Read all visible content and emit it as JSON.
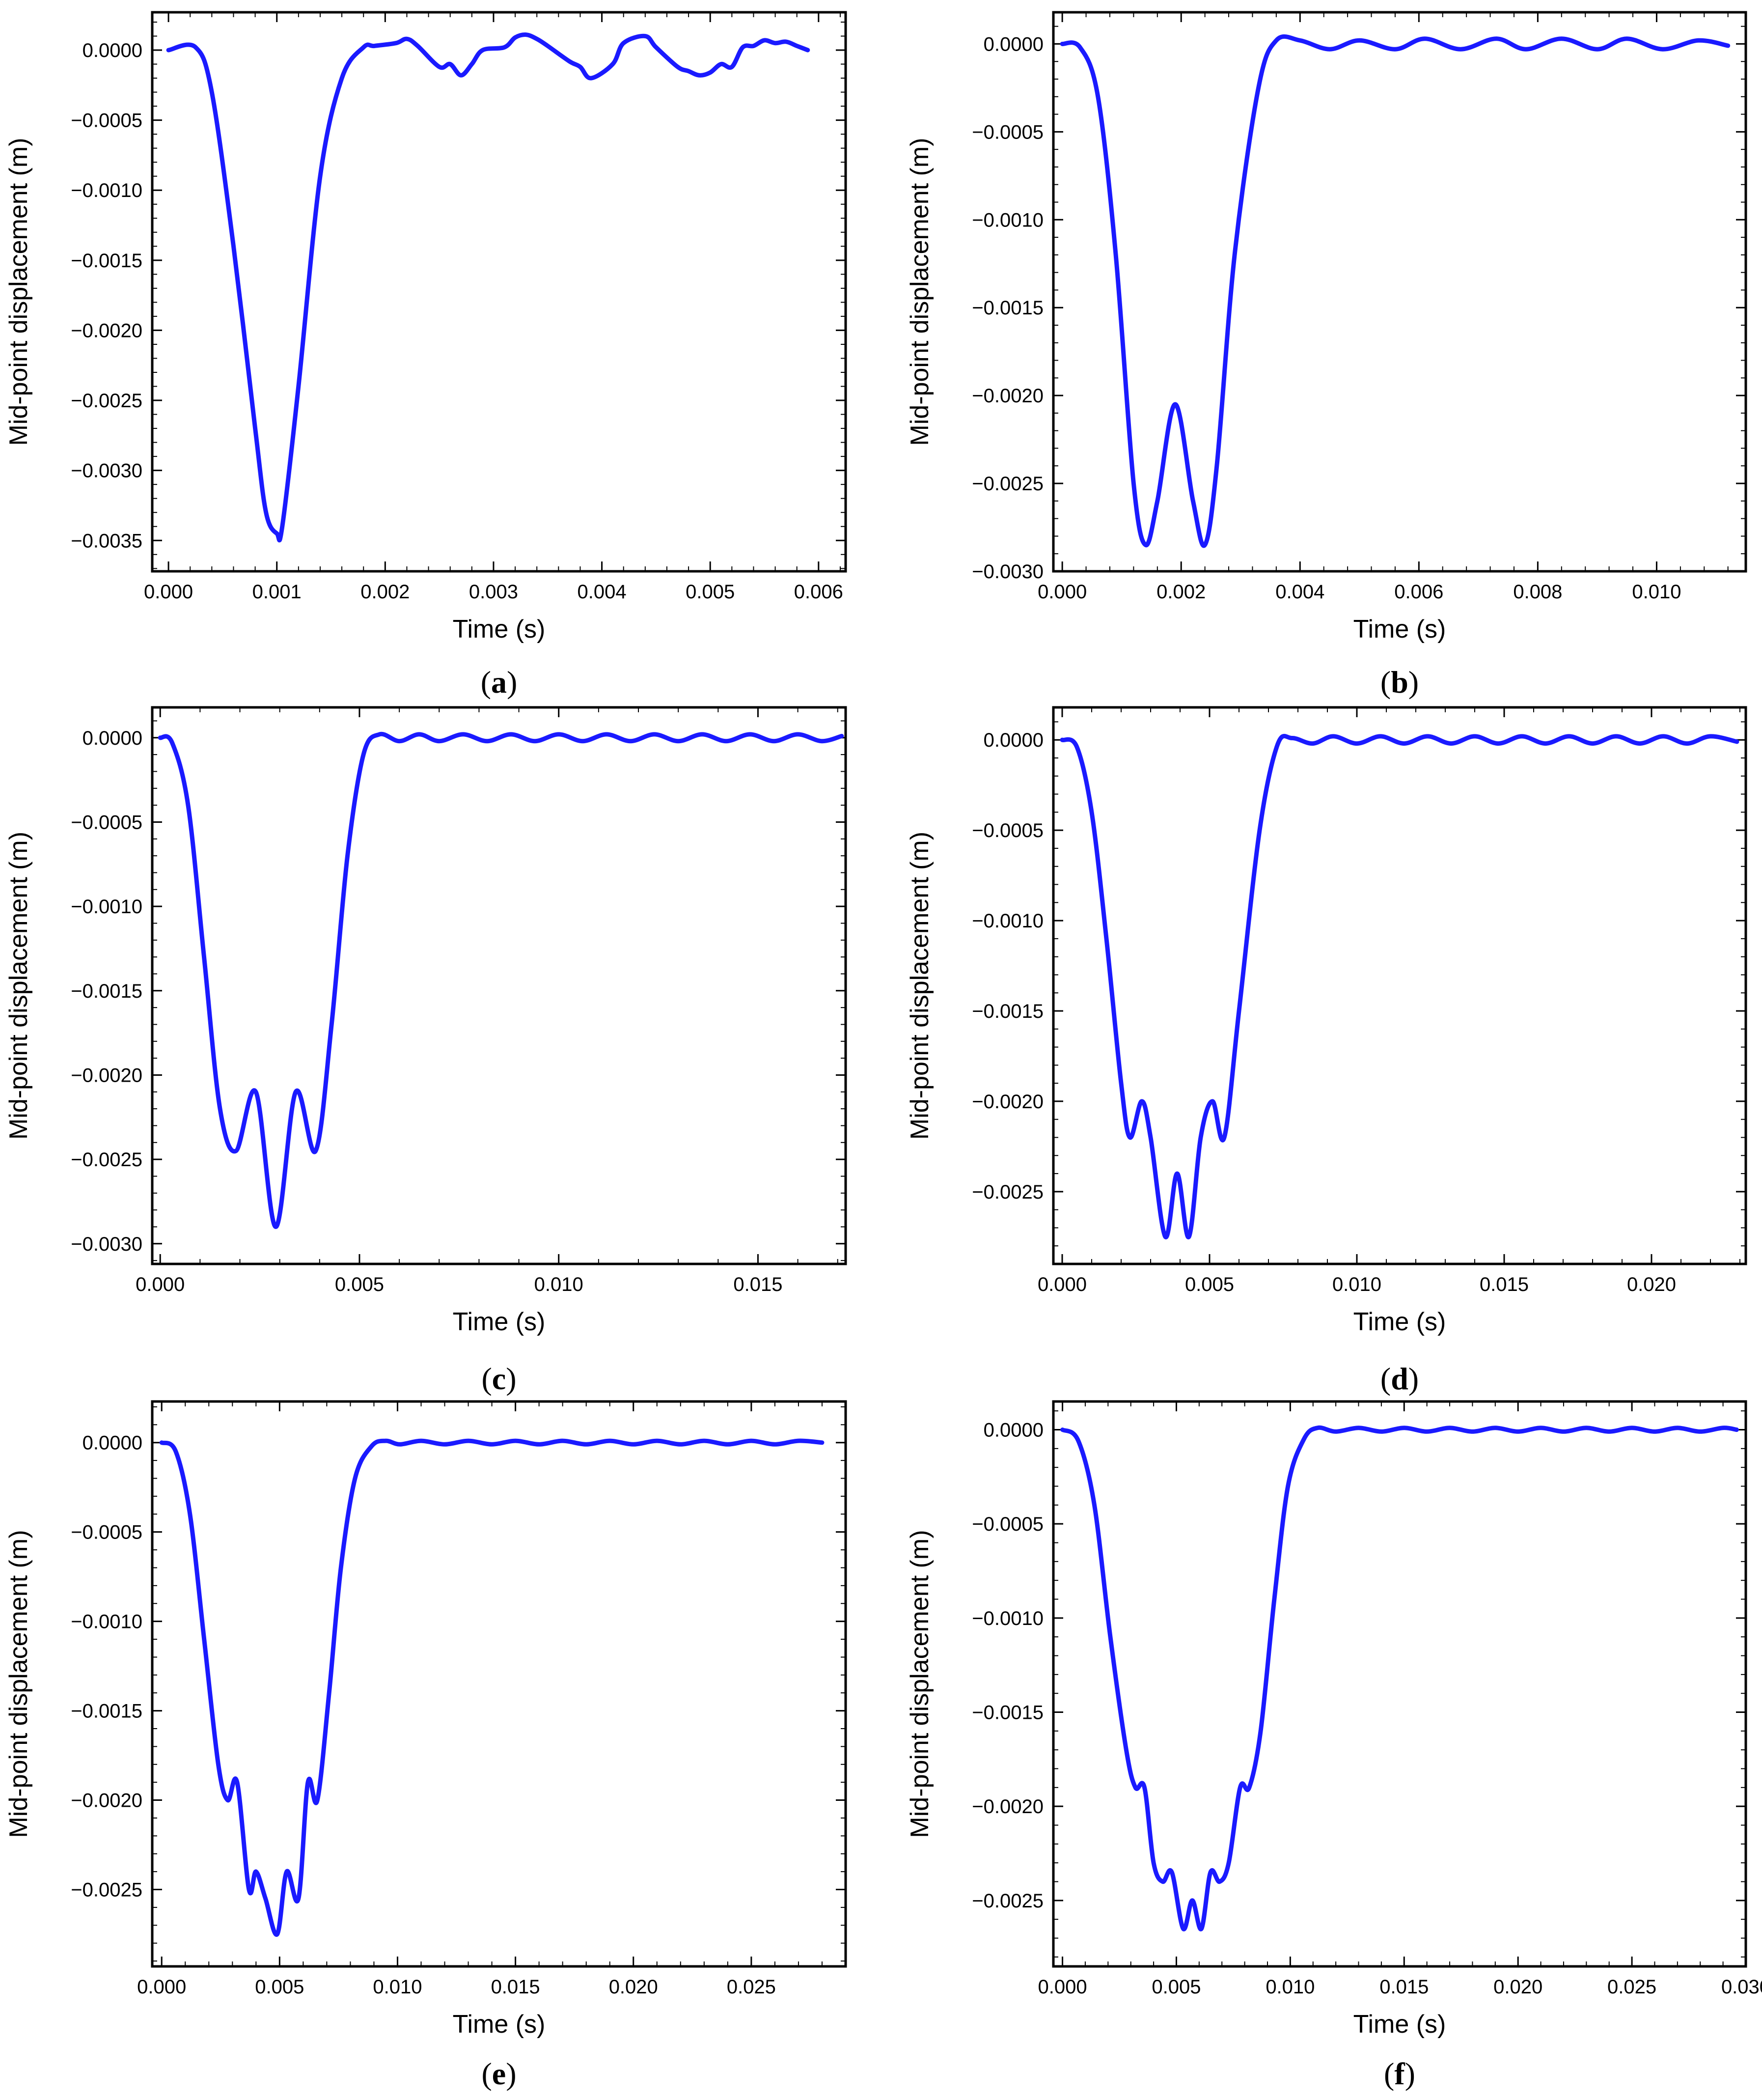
{
  "chart_data": [
    {
      "caption": "(a)",
      "caption_letter": "a",
      "type": "line",
      "xlabel": "Time (s)",
      "ylabel": "Mid-point displacement (m)",
      "xlim": [
        -0.00015,
        0.00625
      ],
      "ylim": [
        -0.00372,
        0.00027
      ],
      "xticks": [
        0.0,
        0.001,
        0.002,
        0.003,
        0.004,
        0.005,
        0.006
      ],
      "xtick_labels": [
        "0.000",
        "0.001",
        "0.002",
        "0.003",
        "0.004",
        "0.005",
        "0.006"
      ],
      "yticks": [
        0.0,
        -0.0005,
        -0.001,
        -0.0015,
        -0.002,
        -0.0025,
        -0.003,
        -0.0035
      ],
      "ytick_labels": [
        "0.0000",
        "−0.0005",
        "−0.0010",
        "−0.0015",
        "−0.0020",
        "−0.0025",
        "−0.0030",
        "−0.0035"
      ],
      "grid": false,
      "series_color": "#1a1aff",
      "x": [
        0,
        0.00025,
        0.0004,
        0.0006,
        0.0008,
        0.0009,
        0.001,
        0.00105,
        0.0012,
        0.0014,
        0.0016,
        0.0018,
        0.0019,
        0.0021,
        0.0022,
        0.0023,
        0.0025,
        0.0026,
        0.0027,
        0.0028,
        0.0029,
        0.0031,
        0.0032,
        0.0033,
        0.0034,
        0.0035,
        0.0037,
        0.0038,
        0.0039,
        0.0041,
        0.0042,
        0.0044,
        0.0045,
        0.0047,
        0.0048,
        0.0049,
        0.005,
        0.0051,
        0.0052,
        0.0053,
        0.0054,
        0.0055,
        0.0056,
        0.0057,
        0.0058,
        0.0059
      ],
      "y": [
        0,
        2e-05,
        -0.0003,
        -0.0014,
        -0.0027,
        -0.0033,
        -0.00345,
        -0.0034,
        -0.0024,
        -0.0009,
        -0.0002,
        2e-05,
        3e-05,
        5e-05,
        8e-05,
        3e-05,
        -0.00012,
        -0.0001,
        -0.00018,
        -0.0001,
        0,
        2e-05,
        9e-05,
        0.00011,
        8e-05,
        3e-05,
        -8e-05,
        -0.00012,
        -0.0002,
        -0.0001,
        5e-05,
        0.0001,
        2e-05,
        -0.00012,
        -0.00015,
        -0.00018,
        -0.00016,
        -0.0001,
        -0.00012,
        2e-05,
        3e-05,
        7e-05,
        5e-05,
        6e-05,
        3e-05,
        0
      ]
    },
    {
      "caption": "(b)",
      "caption_letter": "b",
      "type": "line",
      "xlabel": "Time (s)",
      "ylabel": "Mid-point displacement (m)",
      "xlim": [
        -0.00015,
        0.0115
      ],
      "ylim": [
        -0.003,
        0.00018
      ],
      "xticks": [
        0.0,
        0.002,
        0.004,
        0.006,
        0.008,
        0.01
      ],
      "xtick_labels": [
        "0.000",
        "0.002",
        "0.004",
        "0.006",
        "0.008",
        "0.010"
      ],
      "yticks": [
        0.0,
        -0.0005,
        -0.001,
        -0.0015,
        -0.002,
        -0.0025,
        -0.003
      ],
      "ytick_labels": [
        "0.0000",
        "−0.0005",
        "−0.0010",
        "−0.0015",
        "−0.0020",
        "−0.0025",
        "−0.0030"
      ],
      "grid": false,
      "series_color": "#1a1aff",
      "x": [
        0,
        0.0003,
        0.0006,
        0.0009,
        0.0012,
        0.0014,
        0.0016,
        0.0019,
        0.0022,
        0.0024,
        0.0026,
        0.0029,
        0.0033,
        0.0036,
        0.004,
        0.0045,
        0.005,
        0.0056,
        0.0061,
        0.0067,
        0.0073,
        0.0078,
        0.0084,
        0.009,
        0.0095,
        0.0101,
        0.0107,
        0.0112
      ],
      "y": [
        0,
        -2e-05,
        -0.0003,
        -0.0012,
        -0.0025,
        -0.00285,
        -0.0026,
        -0.00205,
        -0.0026,
        -0.00285,
        -0.0024,
        -0.0012,
        -0.00025,
        2e-05,
        2e-05,
        -3e-05,
        2e-05,
        -3e-05,
        3e-05,
        -3e-05,
        3e-05,
        -3e-05,
        3e-05,
        -3e-05,
        3e-05,
        -3e-05,
        2e-05,
        -1e-05
      ]
    },
    {
      "caption": "(c)",
      "caption_letter": "c",
      "type": "line",
      "xlabel": "Time (s)",
      "ylabel": "Mid-point displacement (m)",
      "xlim": [
        -0.0002,
        0.0172
      ],
      "ylim": [
        -0.00312,
        0.00018
      ],
      "xticks": [
        0.0,
        0.005,
        0.01,
        0.015
      ],
      "xtick_labels": [
        "0.000",
        "0.005",
        "0.010",
        "0.015"
      ],
      "yticks": [
        0.0,
        -0.0005,
        -0.001,
        -0.0015,
        -0.002,
        -0.0025,
        -0.003
      ],
      "ytick_labels": [
        "0.0000",
        "−0.0005",
        "−0.0010",
        "−0.0015",
        "−0.0020",
        "−0.0025",
        "−0.0030"
      ],
      "grid": false,
      "series_color": "#1a1aff",
      "x": [
        0,
        0.0003,
        0.0007,
        0.0011,
        0.0015,
        0.0019,
        0.0024,
        0.0029,
        0.0034,
        0.0039,
        0.0043,
        0.0047,
        0.0051,
        0.0055,
        0.006,
        0.0065,
        0.007,
        0.0076,
        0.0082,
        0.0088,
        0.0094,
        0.01,
        0.0106,
        0.0112,
        0.0118,
        0.0124,
        0.013,
        0.0136,
        0.0142,
        0.0148,
        0.0154,
        0.016,
        0.0166,
        0.0171
      ],
      "y": [
        0,
        -3e-05,
        -0.0004,
        -0.0013,
        -0.0022,
        -0.00245,
        -0.0021,
        -0.0029,
        -0.0021,
        -0.00245,
        -0.0017,
        -0.0007,
        -0.0001,
        2e-05,
        -2e-05,
        2e-05,
        -2e-05,
        2e-05,
        -2e-05,
        2e-05,
        -2e-05,
        2e-05,
        -2e-05,
        2e-05,
        -2e-05,
        2e-05,
        -2e-05,
        2e-05,
        -2e-05,
        2e-05,
        -2e-05,
        2e-05,
        -2e-05,
        1e-05
      ]
    },
    {
      "caption": "(d)",
      "caption_letter": "d",
      "type": "line",
      "xlabel": "Time (s)",
      "ylabel": "Mid-point displacement (m)",
      "xlim": [
        -0.0003,
        0.0232
      ],
      "ylim": [
        -0.0029,
        0.00018
      ],
      "xticks": [
        0.0,
        0.005,
        0.01,
        0.015,
        0.02
      ],
      "xtick_labels": [
        "0.000",
        "0.005",
        "0.010",
        "0.015",
        "0.020"
      ],
      "yticks": [
        0.0,
        -0.0005,
        -0.001,
        -0.0015,
        -0.002,
        -0.0025
      ],
      "ytick_labels": [
        "0.0000",
        "−0.0005",
        "−0.0010",
        "−0.0015",
        "−0.0020",
        "−0.0025"
      ],
      "grid": false,
      "series_color": "#1a1aff",
      "x": [
        0,
        0.0005,
        0.001,
        0.0015,
        0.002,
        0.0023,
        0.0027,
        0.003,
        0.0035,
        0.0039,
        0.0043,
        0.0047,
        0.0051,
        0.0055,
        0.006,
        0.0067,
        0.0073,
        0.0078,
        0.0085,
        0.0092,
        0.01,
        0.0108,
        0.0116,
        0.0124,
        0.0132,
        0.014,
        0.0148,
        0.0156,
        0.0164,
        0.0172,
        0.018,
        0.0188,
        0.0196,
        0.0204,
        0.0212,
        0.022,
        0.0229
      ],
      "y": [
        0,
        -4e-05,
        -0.0004,
        -0.0011,
        -0.0019,
        -0.0022,
        -0.002,
        -0.0022,
        -0.00275,
        -0.0024,
        -0.00275,
        -0.0022,
        -0.002,
        -0.0022,
        -0.0015,
        -0.0005,
        -3e-05,
        1e-05,
        -2e-05,
        2e-05,
        -2e-05,
        2e-05,
        -2e-05,
        2e-05,
        -2e-05,
        2e-05,
        -2e-05,
        2e-05,
        -2e-05,
        2e-05,
        -2e-05,
        2e-05,
        -2e-05,
        2e-05,
        -2e-05,
        2e-05,
        -1e-05
      ]
    },
    {
      "caption": "(e)",
      "caption_letter": "e",
      "type": "line",
      "xlabel": "Time (s)",
      "ylabel": "Mid-point displacement (m)",
      "xlim": [
        -0.0004,
        0.029
      ],
      "ylim": [
        -0.00293,
        0.00023
      ],
      "xticks": [
        0.0,
        0.005,
        0.01,
        0.015,
        0.02,
        0.025
      ],
      "xtick_labels": [
        "0.000",
        "0.005",
        "0.010",
        "0.015",
        "0.020",
        "0.025"
      ],
      "yticks": [
        0.0,
        -0.0005,
        -0.001,
        -0.0015,
        -0.002,
        -0.0025
      ],
      "ytick_labels": [
        "0.0000",
        "−0.0005",
        "−0.0010",
        "−0.0015",
        "−0.0020",
        "−0.0025"
      ],
      "grid": false,
      "series_color": "#1a1aff",
      "x": [
        0,
        0.0006,
        0.0012,
        0.0018,
        0.0024,
        0.0028,
        0.0032,
        0.0037,
        0.004,
        0.0044,
        0.0049,
        0.0053,
        0.0058,
        0.0062,
        0.0066,
        0.0071,
        0.0076,
        0.0082,
        0.0089,
        0.0095,
        0.0101,
        0.011,
        0.012,
        0.013,
        0.014,
        0.015,
        0.016,
        0.017,
        0.018,
        0.019,
        0.02,
        0.021,
        0.022,
        0.023,
        0.024,
        0.025,
        0.026,
        0.027,
        0.028
      ],
      "y": [
        0,
        -5e-05,
        -0.0004,
        -0.0011,
        -0.0018,
        -0.002,
        -0.0019,
        -0.0025,
        -0.0024,
        -0.00255,
        -0.00275,
        -0.0024,
        -0.00255,
        -0.0019,
        -0.002,
        -0.0014,
        -0.0007,
        -0.0002,
        -2e-05,
        1e-05,
        -1e-05,
        1e-05,
        -1e-05,
        1e-05,
        -1e-05,
        1e-05,
        -1e-05,
        1e-05,
        -1e-05,
        1e-05,
        -1e-05,
        1e-05,
        -1e-05,
        1e-05,
        -1e-05,
        1e-05,
        -1e-05,
        1e-05,
        0
      ]
    },
    {
      "caption": "(f)",
      "caption_letter": "f",
      "type": "line",
      "xlabel": "Time (s)",
      "ylabel": "Mid-point displacement (m)",
      "xlim": [
        -0.0004,
        0.03
      ],
      "ylim": [
        -0.00285,
        0.00015
      ],
      "xticks": [
        0.0,
        0.005,
        0.01,
        0.015,
        0.02,
        0.025,
        0.03
      ],
      "xtick_labels": [
        "0.000",
        "0.005",
        "0.010",
        "0.015",
        "0.020",
        "0.025",
        "0.030"
      ],
      "yticks": [
        0.0,
        -0.0005,
        -0.001,
        -0.0015,
        -0.002,
        -0.0025
      ],
      "ytick_labels": [
        "0.0000",
        "−0.0005",
        "−0.0010",
        "−0.0015",
        "−0.0020",
        "−0.0025"
      ],
      "grid": false,
      "series_color": "#1a1aff",
      "x": [
        0,
        0.0007,
        0.0014,
        0.0021,
        0.0028,
        0.0032,
        0.0036,
        0.004,
        0.0044,
        0.0048,
        0.0053,
        0.0057,
        0.0061,
        0.0065,
        0.0069,
        0.0073,
        0.0078,
        0.0082,
        0.0087,
        0.0093,
        0.0099,
        0.0106,
        0.0112,
        0.012,
        0.013,
        0.014,
        0.015,
        0.016,
        0.017,
        0.018,
        0.019,
        0.02,
        0.021,
        0.022,
        0.023,
        0.024,
        0.025,
        0.026,
        0.027,
        0.028,
        0.029,
        0.0296
      ],
      "y": [
        0,
        -6e-05,
        -0.0004,
        -0.0011,
        -0.0017,
        -0.0019,
        -0.0019,
        -0.0023,
        -0.0024,
        -0.00235,
        -0.00265,
        -0.0025,
        -0.00265,
        -0.00235,
        -0.0024,
        -0.0023,
        -0.0019,
        -0.0019,
        -0.0016,
        -0.0009,
        -0.0003,
        -5e-05,
        1e-05,
        -1e-05,
        1e-05,
        -1e-05,
        1e-05,
        -1e-05,
        1e-05,
        -1e-05,
        1e-05,
        -1e-05,
        1e-05,
        -1e-05,
        1e-05,
        -1e-05,
        1e-05,
        -1e-05,
        1e-05,
        -1e-05,
        1e-05,
        0
      ]
    }
  ]
}
